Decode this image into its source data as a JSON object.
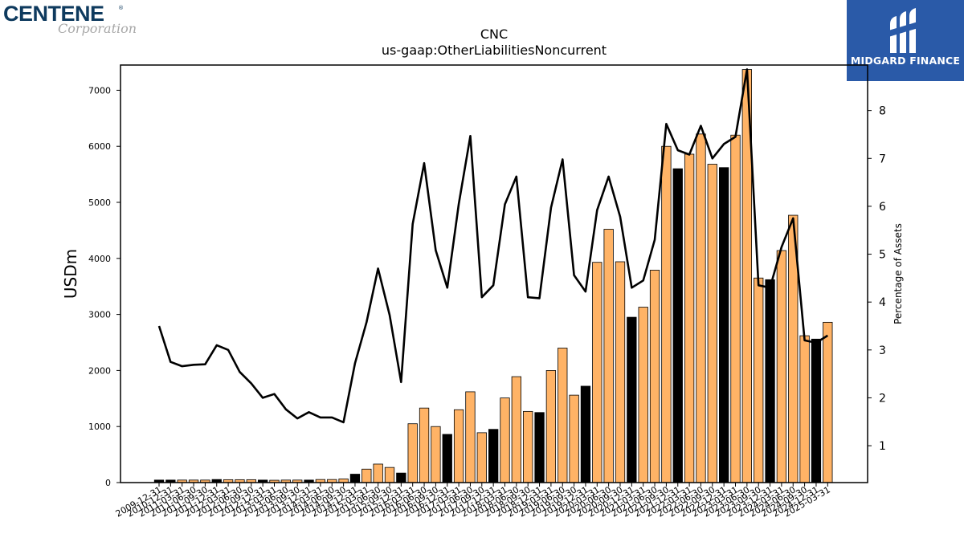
{
  "logos": {
    "left_brand": "CENTENE",
    "left_registered": "®",
    "left_sub": "Corporation",
    "right_name": "MIDGARD FINANCE",
    "right_bg_color": "#2a5aa8"
  },
  "chart_data": {
    "type": "bar",
    "title": "CNC",
    "subtitle": "us-gaap:OtherLiabilitiesNoncurrent",
    "ylabel": "USDm",
    "y2label": "Percentage of Assets",
    "ylim": [
      0,
      7450
    ],
    "y2lim": [
      0.23,
      8.95
    ],
    "yticks": [
      0,
      1000,
      2000,
      3000,
      4000,
      5000,
      6000,
      7000
    ],
    "y2ticks": [
      1,
      2,
      3,
      4,
      5,
      6,
      7,
      8
    ],
    "categories": [
      "2009-12-31",
      "2010-12-31",
      "2011-03-31",
      "2011-06-30",
      "2011-09-30",
      "2011-12-31",
      "2012-03-31",
      "2012-06-30",
      "2012-09-30",
      "2012-12-31",
      "2013-03-31",
      "2013-06-30",
      "2013-09-30",
      "2013-12-31",
      "2014-03-31",
      "2014-06-30",
      "2014-09-30",
      "2014-12-31",
      "2015-03-31",
      "2015-06-30",
      "2015-09-30",
      "2015-12-31",
      "2016-03-31",
      "2016-06-30",
      "2016-09-30",
      "2016-12-31",
      "2017-03-31",
      "2017-06-30",
      "2017-09-30",
      "2017-12-31",
      "2018-03-31",
      "2018-06-30",
      "2018-09-30",
      "2018-12-31",
      "2019-03-31",
      "2019-06-30",
      "2019-09-30",
      "2019-12-31",
      "2020-03-31",
      "2020-06-30",
      "2020-09-30",
      "2020-12-31",
      "2021-03-31",
      "2021-06-30",
      "2021-09-30",
      "2021-12-31",
      "2022-03-31",
      "2022-06-30",
      "2022-09-30",
      "2022-12-31",
      "2023-03-31",
      "2023-06-30",
      "2023-09-30",
      "2023-12-31",
      "2024-03-31",
      "2024-06-30",
      "2024-09-30",
      "2024-12-31",
      "2025-03-31"
    ],
    "series": [
      {
        "kind": "bar",
        "values": [
          45,
          45,
          45,
          45,
          45,
          55,
          52,
          52,
          52,
          45,
          42,
          45,
          45,
          45,
          55,
          55,
          65,
          150,
          240,
          330,
          270,
          170,
          1050,
          1330,
          1000,
          860,
          1300,
          1620,
          890,
          950,
          1510,
          1890,
          1270,
          1250,
          2000,
          2400,
          1560,
          1720,
          3930,
          4520,
          3940,
          2950,
          3130,
          3790,
          6000,
          5600,
          5860,
          6220,
          5680,
          5620,
          6200,
          7370,
          3650,
          3620,
          4140,
          4770,
          2620,
          2560,
          2860
        ],
        "colors": [
          "#000000",
          "#000000",
          "#ffb366",
          "#ffb366",
          "#ffb366",
          "#000000",
          "#ffb366",
          "#ffb366",
          "#ffb366",
          "#000000",
          "#ffb366",
          "#ffb366",
          "#ffb366",
          "#000000",
          "#ffb366",
          "#ffb366",
          "#ffb366",
          "#000000",
          "#ffb366",
          "#ffb366",
          "#ffb366",
          "#000000",
          "#ffb366",
          "#ffb366",
          "#ffb366",
          "#000000",
          "#ffb366",
          "#ffb366",
          "#ffb366",
          "#000000",
          "#ffb366",
          "#ffb366",
          "#ffb366",
          "#000000",
          "#ffb366",
          "#ffb366",
          "#ffb366",
          "#000000",
          "#ffb366",
          "#ffb366",
          "#ffb366",
          "#000000",
          "#ffb366",
          "#ffb366",
          "#ffb366",
          "#000000",
          "#ffb366",
          "#ffb366",
          "#ffb366",
          "#000000",
          "#ffb366",
          "#ffb366",
          "#ffb366",
          "#000000",
          "#ffb366",
          "#ffb366",
          "#ffb366",
          "#000000",
          "#ffb366"
        ]
      },
      {
        "kind": "line",
        "axis": "right",
        "color": "#000000",
        "values": [
          3.5,
          2.75,
          2.66,
          2.69,
          2.7,
          3.1,
          3.0,
          2.54,
          2.3,
          2.0,
          2.08,
          1.76,
          1.57,
          1.7,
          1.59,
          1.59,
          1.49,
          2.72,
          3.58,
          4.7,
          3.73,
          2.33,
          5.63,
          6.9,
          5.08,
          4.3,
          6.05,
          7.47,
          4.1,
          4.35,
          6.04,
          6.62,
          4.1,
          4.08,
          5.97,
          6.98,
          4.56,
          4.22,
          5.92,
          6.62,
          5.78,
          4.3,
          4.45,
          5.3,
          7.72,
          7.17,
          7.08,
          7.68,
          7.0,
          7.3,
          7.45,
          8.86,
          4.35,
          4.3,
          5.15,
          5.75,
          3.2,
          3.15,
          3.3
        ]
      }
    ],
    "bar_edge_color": "#000000",
    "grid": false,
    "legend": "none"
  }
}
